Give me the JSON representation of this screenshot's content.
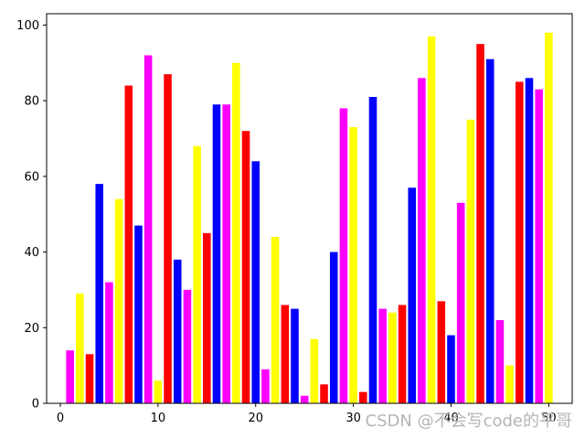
{
  "chart_data": {
    "type": "bar",
    "x": [
      1,
      2,
      3,
      4,
      5,
      6,
      7,
      8,
      9,
      10,
      11,
      12,
      13,
      14,
      15,
      16,
      17,
      18,
      19,
      20,
      21,
      22,
      23,
      24,
      25,
      26,
      27,
      28,
      29,
      30,
      31,
      32,
      33,
      34,
      35,
      36,
      37,
      38,
      39,
      40,
      41,
      42,
      43,
      44,
      45,
      46,
      47,
      48,
      49,
      50
    ],
    "values": [
      14,
      29,
      13,
      58,
      32,
      54,
      84,
      47,
      92,
      6,
      87,
      38,
      30,
      68,
      45,
      79,
      79,
      90,
      72,
      64,
      9,
      44,
      26,
      25,
      2,
      17,
      5,
      40,
      78,
      73,
      3,
      81,
      25,
      24,
      26,
      57,
      86,
      97,
      27,
      18,
      53,
      75,
      95,
      91,
      22,
      10,
      85,
      86,
      83,
      98
    ],
    "bar_colors": [
      "#ff00ff",
      "#ffff00",
      "#ff0000",
      "#0000ff",
      "#ff00ff",
      "#ffff00",
      "#ff0000",
      "#0000ff",
      "#ff00ff",
      "#ffff00",
      "#ff0000",
      "#0000ff",
      "#ff00ff",
      "#ffff00",
      "#ff0000",
      "#0000ff",
      "#ff00ff",
      "#ffff00",
      "#ff0000",
      "#0000ff",
      "#ff00ff",
      "#ffff00",
      "#ff0000",
      "#0000ff",
      "#ff00ff",
      "#ffff00",
      "#ff0000",
      "#0000ff",
      "#ff00ff",
      "#ffff00",
      "#ff0000",
      "#0000ff",
      "#ff00ff",
      "#ffff00",
      "#ff0000",
      "#0000ff",
      "#ff00ff",
      "#ffff00",
      "#ff0000",
      "#0000ff",
      "#ff00ff",
      "#ffff00",
      "#ff0000",
      "#0000ff",
      "#ff00ff",
      "#ffff00",
      "#ff0000",
      "#0000ff",
      "#ff00ff",
      "#ffff00"
    ],
    "xlim": [
      -1.4,
      52.4
    ],
    "ylim": [
      0,
      103
    ],
    "xticks": [
      0,
      10,
      20,
      30,
      40,
      50
    ],
    "yticks": [
      0,
      20,
      40,
      60,
      80,
      100
    ],
    "xticklabels": [
      "0",
      "10",
      "20",
      "30",
      "40",
      "50"
    ],
    "yticklabels": [
      "0",
      "20",
      "40",
      "60",
      "80",
      "100"
    ],
    "title": "",
    "xlabel": "",
    "ylabel": "",
    "grid": false,
    "legend": "none"
  },
  "watermark": "CSDN @不会写code的平哥"
}
